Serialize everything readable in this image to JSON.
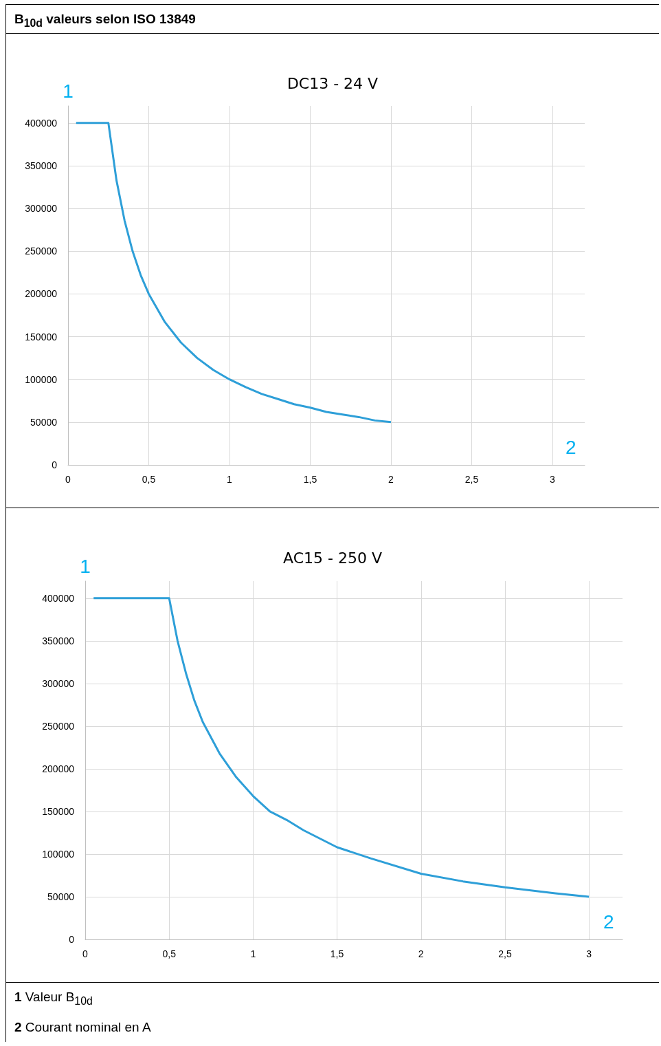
{
  "chart_data": [
    {
      "type": "line",
      "title": "DC13 - 24 V",
      "xlabel": "2",
      "ylabel": "1",
      "annotations": [
        "B$_{10d}$ valeurs selon ISO 13849"
      ],
      "xlim": [
        0,
        3.2
      ],
      "xticks": [
        0,
        {
          "value": 0.5,
          "label": "0,5"
        },
        1,
        {
          "value": 1.5,
          "label": "1,5"
        },
        2,
        {
          "value": 2.5,
          "label": "2,5"
        },
        3
      ],
      "ylim": [
        0,
        420000
      ],
      "yticks": [
        0,
        50000,
        100000,
        150000,
        200000,
        250000,
        300000,
        350000,
        400000
      ],
      "grid": true,
      "marker": "none",
      "line_style": "solid",
      "series": [
        {
          "color": "#2e9fd8",
          "x": [
            0.05,
            0.25,
            0.3,
            0.35,
            0.4,
            0.45,
            0.5,
            0.6,
            0.7,
            0.8,
            0.9,
            1,
            1.1,
            1.2,
            1.3,
            1.4,
            1.5,
            1.6,
            1.7,
            1.8,
            1.9,
            2
          ],
          "values": [
            400000,
            400000,
            333000,
            286000,
            250000,
            222000,
            200000,
            167000,
            143000,
            125000,
            111000,
            100000,
            91000,
            83000,
            77000,
            71000,
            67000,
            62000,
            59000,
            56000,
            52000,
            50000
          ]
        }
      ]
    },
    {
      "type": "line",
      "title": "AC15 - 250 V",
      "xlabel": "2",
      "ylabel": "1",
      "annotations": [
        "1 Valeur B$_{10d}$",
        "2 Courant nominal en A"
      ],
      "xlim": [
        0,
        3.2
      ],
      "xticks": [
        0,
        {
          "value": 0.5,
          "label": "0,5"
        },
        1,
        {
          "value": 1.5,
          "label": "1,5"
        },
        2,
        {
          "value": 2.5,
          "label": "2,5"
        },
        3
      ],
      "ylim": [
        0,
        420000
      ],
      "yticks": [
        0,
        50000,
        100000,
        150000,
        200000,
        250000,
        300000,
        350000,
        400000
      ],
      "grid": true,
      "marker": "none",
      "line_style": "solid",
      "series": [
        {
          "color": "#2e9fd8",
          "x": [
            0.05,
            0.5,
            0.55,
            0.6,
            0.65,
            0.7,
            0.8,
            0.9,
            1,
            1.1,
            1.2,
            1.3,
            1.5,
            1.7,
            2,
            2.25,
            2.5,
            2.8,
            3
          ],
          "values": [
            400000,
            400000,
            350000,
            312000,
            280000,
            255000,
            218000,
            190000,
            168000,
            150000,
            140000,
            128000,
            108000,
            95000,
            77000,
            68000,
            61000,
            54000,
            50000
          ]
        }
      ]
    }
  ]
}
